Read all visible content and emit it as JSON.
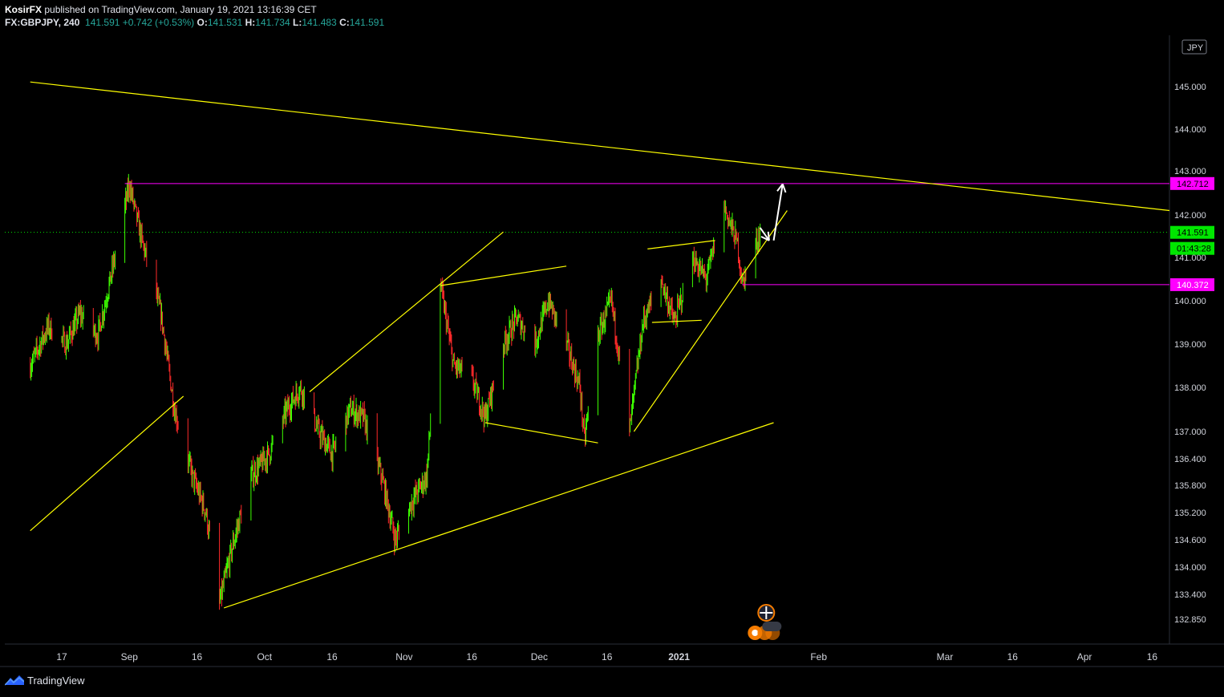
{
  "header": {
    "author": "KosirFX",
    "published_text": "published on TradingView.com, January 19, 2021 13:16:39 CET",
    "symbol": "FX:GBPJPY, 240",
    "last": "141.591",
    "change": "+0.742 (+0.53%)",
    "o_label": "O:",
    "o": "141.531",
    "h_label": "H:",
    "h": "141.734",
    "l_label": "L:",
    "l": "141.483",
    "c_label": "C:",
    "c": "141.591"
  },
  "footer": {
    "brand": "TradingView"
  },
  "colors": {
    "background": "#000000",
    "up": "#3cff00",
    "down": "#ff2a2a",
    "trendline": "#ffff00",
    "level": "#ff00ff",
    "last_price": "#00e600",
    "grid_text": "#d1d4dc"
  },
  "chart_data": {
    "type": "candlestick",
    "symbol": "FX:GBPJPY",
    "interval": "240",
    "currency": "JPY",
    "ylim": [
      132.5,
      146.0
    ],
    "y_ticks": [
      "145.000",
      "144.000",
      "143.000",
      "142.000",
      "141.000",
      "140.000",
      "139.000",
      "138.000",
      "137.000",
      "136.400",
      "135.800",
      "135.200",
      "134.600",
      "134.000",
      "133.400",
      "132.850"
    ],
    "x_ticks": [
      "17",
      "Sep",
      "16",
      "Oct",
      "16",
      "Nov",
      "16",
      "Dec",
      "16",
      "2021",
      "Feb",
      "Mar",
      "16",
      "Apr",
      "16"
    ],
    "price_labels": {
      "resistance": "142.712",
      "last": "141.591",
      "countdown": "01:43:28",
      "support": "140.372"
    },
    "horizontal_levels": [
      142.712,
      140.372
    ],
    "last_price": 141.591,
    "swing_path": [
      [
        "Aug 10",
        138.5
      ],
      [
        "Aug 14",
        139.4
      ],
      [
        "Aug 18",
        139.0
      ],
      [
        "Aug 21",
        139.7
      ],
      [
        "Aug 25",
        139.2
      ],
      [
        "Aug 28",
        140.6
      ],
      [
        "Sep 1",
        142.7
      ],
      [
        "Sep 4",
        141.3
      ],
      [
        "Sep 8",
        139.7
      ],
      [
        "Sep 11",
        137.5
      ],
      [
        "Sep 15",
        136.0
      ],
      [
        "Sep 18",
        135.2
      ],
      [
        "Sep 21",
        133.2
      ],
      [
        "Sep 24",
        134.5
      ],
      [
        "Sep 28",
        136.0
      ],
      [
        "Oct 2",
        136.5
      ],
      [
        "Oct 6",
        137.5
      ],
      [
        "Oct 9",
        138.0
      ],
      [
        "Oct 13",
        137.0
      ],
      [
        "Oct 16",
        136.5
      ],
      [
        "Oct 20",
        137.5
      ],
      [
        "Oct 23",
        137.3
      ],
      [
        "Oct 27",
        136.0
      ],
      [
        "Oct 30",
        134.6
      ],
      [
        "Nov 3",
        135.5
      ],
      [
        "Nov 6",
        136.0
      ],
      [
        "Nov 9",
        140.4
      ],
      [
        "Nov 12",
        138.5
      ],
      [
        "Nov 16",
        138.2
      ],
      [
        "Nov 19",
        137.3
      ],
      [
        "Nov 23",
        139.0
      ],
      [
        "Nov 26",
        139.6
      ],
      [
        "Nov 30",
        139.0
      ],
      [
        "Dec 3",
        140.0
      ],
      [
        "Dec 7",
        139.0
      ],
      [
        "Dec 10",
        138.0
      ],
      [
        "Dec 11",
        136.8
      ],
      [
        "Dec 14",
        139.2
      ],
      [
        "Dec 17",
        140.0
      ],
      [
        "Dec 21",
        137.0
      ],
      [
        "Dec 24",
        139.5
      ],
      [
        "Dec 28",
        140.5
      ],
      [
        "Dec 31",
        139.5
      ],
      [
        "Jan 4",
        141.0
      ],
      [
        "Jan 7",
        140.5
      ],
      [
        "Jan 11",
        142.2
      ],
      [
        "Jan 14",
        141.3
      ],
      [
        "Jan 15",
        140.4
      ],
      [
        "Jan 19",
        141.591
      ]
    ],
    "trendlines": [
      {
        "from": [
          "Aug 10",
          145.1
        ],
        "to": [
          "Apr 20",
          142.1
        ]
      },
      {
        "from": [
          "Aug 10",
          134.8
        ],
        "to": [
          "Sep 13",
          137.8
        ]
      },
      {
        "from": [
          "Sep 22",
          133.1
        ],
        "to": [
          "Jan 22",
          137.2
        ]
      },
      {
        "from": [
          "Oct 11",
          137.9
        ],
        "to": [
          "Nov 23",
          141.6
        ]
      },
      {
        "from": [
          "Nov 9",
          140.35
        ],
        "to": [
          "Dec 7",
          140.8
        ]
      },
      {
        "from": [
          "Nov 19",
          137.2
        ],
        "to": [
          "Dec 14",
          136.75
        ]
      },
      {
        "from": [
          "Dec 22",
          137.0
        ],
        "to": [
          "Jan 25",
          142.1
        ]
      },
      {
        "from": [
          "Dec 25",
          141.2
        ],
        "to": [
          "Jan 9",
          141.4
        ]
      },
      {
        "from": [
          "Dec 26",
          139.5
        ],
        "to": [
          "Jan 6",
          139.55
        ]
      }
    ],
    "projection_arrows": [
      {
        "from": [
          "Jan 19",
          141.7
        ],
        "to": [
          "Jan 21",
          141.4
        ]
      },
      {
        "from": [
          "Jan 22",
          141.4
        ],
        "to": [
          "Jan 24",
          142.7
        ]
      }
    ]
  }
}
